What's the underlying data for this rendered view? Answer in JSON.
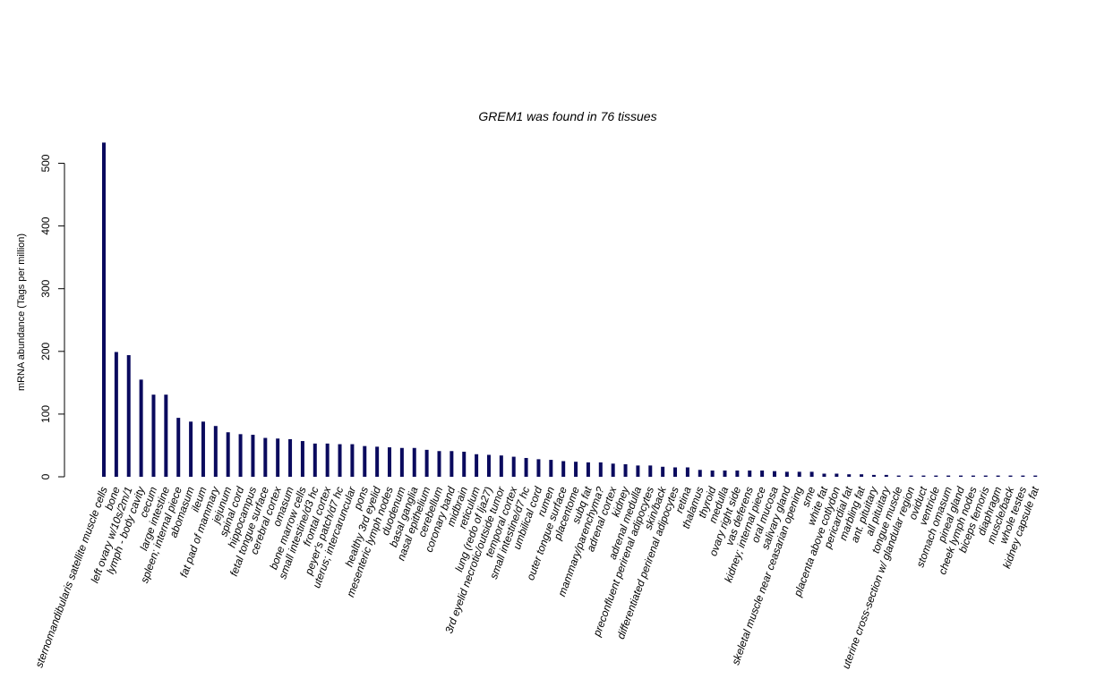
{
  "chart_data": {
    "type": "bar",
    "title": "GREM1  was found in  76  tissues",
    "xlabel": "",
    "ylabel": "mRNA abundance (Tags per million)",
    "ylim": [
      0,
      535
    ],
    "yticks": [
      0,
      100,
      200,
      300,
      400,
      500
    ],
    "grid": false,
    "bar_color": "#0a0a5e",
    "categories": [
      "sternomandibularis satellite muscle cells",
      "bone",
      "left ovary w/10s/2m/1",
      "lymph - body cavity",
      "cecum",
      "large intestine",
      "spleen; internal piece",
      "abomasum",
      "ileum",
      "fat pad of mammary",
      "jejunum",
      "spinal cord",
      "hippocampus",
      "fetal tongue surface",
      "cerebral cortex",
      "omasum",
      "bone marrow cells",
      "small intestine/d3 hc",
      "frontal cortex",
      "peyer's patch/d7 hc",
      "uterus; intercaruncular",
      "pons",
      "healthy 3rd eyelid",
      "mesenteric lymph nodes",
      "duodenum",
      "basal ganglia",
      "nasal epithelium",
      "cerebellum",
      "coronary band",
      "midbrain",
      "reticulum",
      "lung (redo of lja27)",
      "3rd eyelid necrotic/outside tumor",
      "temporal cortex",
      "small intestine/d7 hc",
      "umbilical cord",
      "rumen",
      "outer tongue surface",
      "placentome",
      "subq fat",
      "mammary/parenchyma?",
      "adrenal cortex",
      "kidney",
      "adrenal medulla",
      "preconfluent perirenal adipocytes",
      "skin/back",
      "differentiated perirenal adipocytes",
      "retina",
      "thalamus",
      "thyroid",
      "medulla",
      "ovary right side",
      "vas deferens",
      "kidney; internal piece",
      "oral mucosa",
      "salivary gland",
      "skeletal muscle near ceasarian opening",
      "sme",
      "white fat",
      "placenta above cotlydon",
      "pericardial fat",
      "marbling fat",
      "ant. pituitary",
      "all pituitary",
      "tongue muscle",
      "uterine cross-section w/ glandular region",
      "oviduct",
      "ventricle",
      "stomach omasum",
      "pineal gland",
      "cheek lymph nodes",
      "biceps femoris",
      "diaphragm",
      "muscle/back",
      "whole testes",
      "kidney capsule fat"
    ],
    "values": [
      533,
      199,
      194,
      155,
      131,
      131,
      94,
      88,
      88,
      81,
      71,
      68,
      67,
      62,
      61,
      60,
      57,
      53,
      53,
      52,
      52,
      49,
      48,
      47,
      46,
      46,
      43,
      41,
      41,
      40,
      36,
      35,
      34,
      32,
      30,
      28,
      27,
      25,
      24,
      23,
      23,
      21,
      20,
      18,
      18,
      16,
      15,
      15,
      11,
      10,
      10,
      10,
      10,
      10,
      9,
      8,
      8,
      8,
      5,
      5,
      4,
      4,
      3,
      3,
      2,
      2,
      2,
      2,
      2,
      2,
      2,
      2,
      2,
      2,
      2,
      2
    ]
  }
}
